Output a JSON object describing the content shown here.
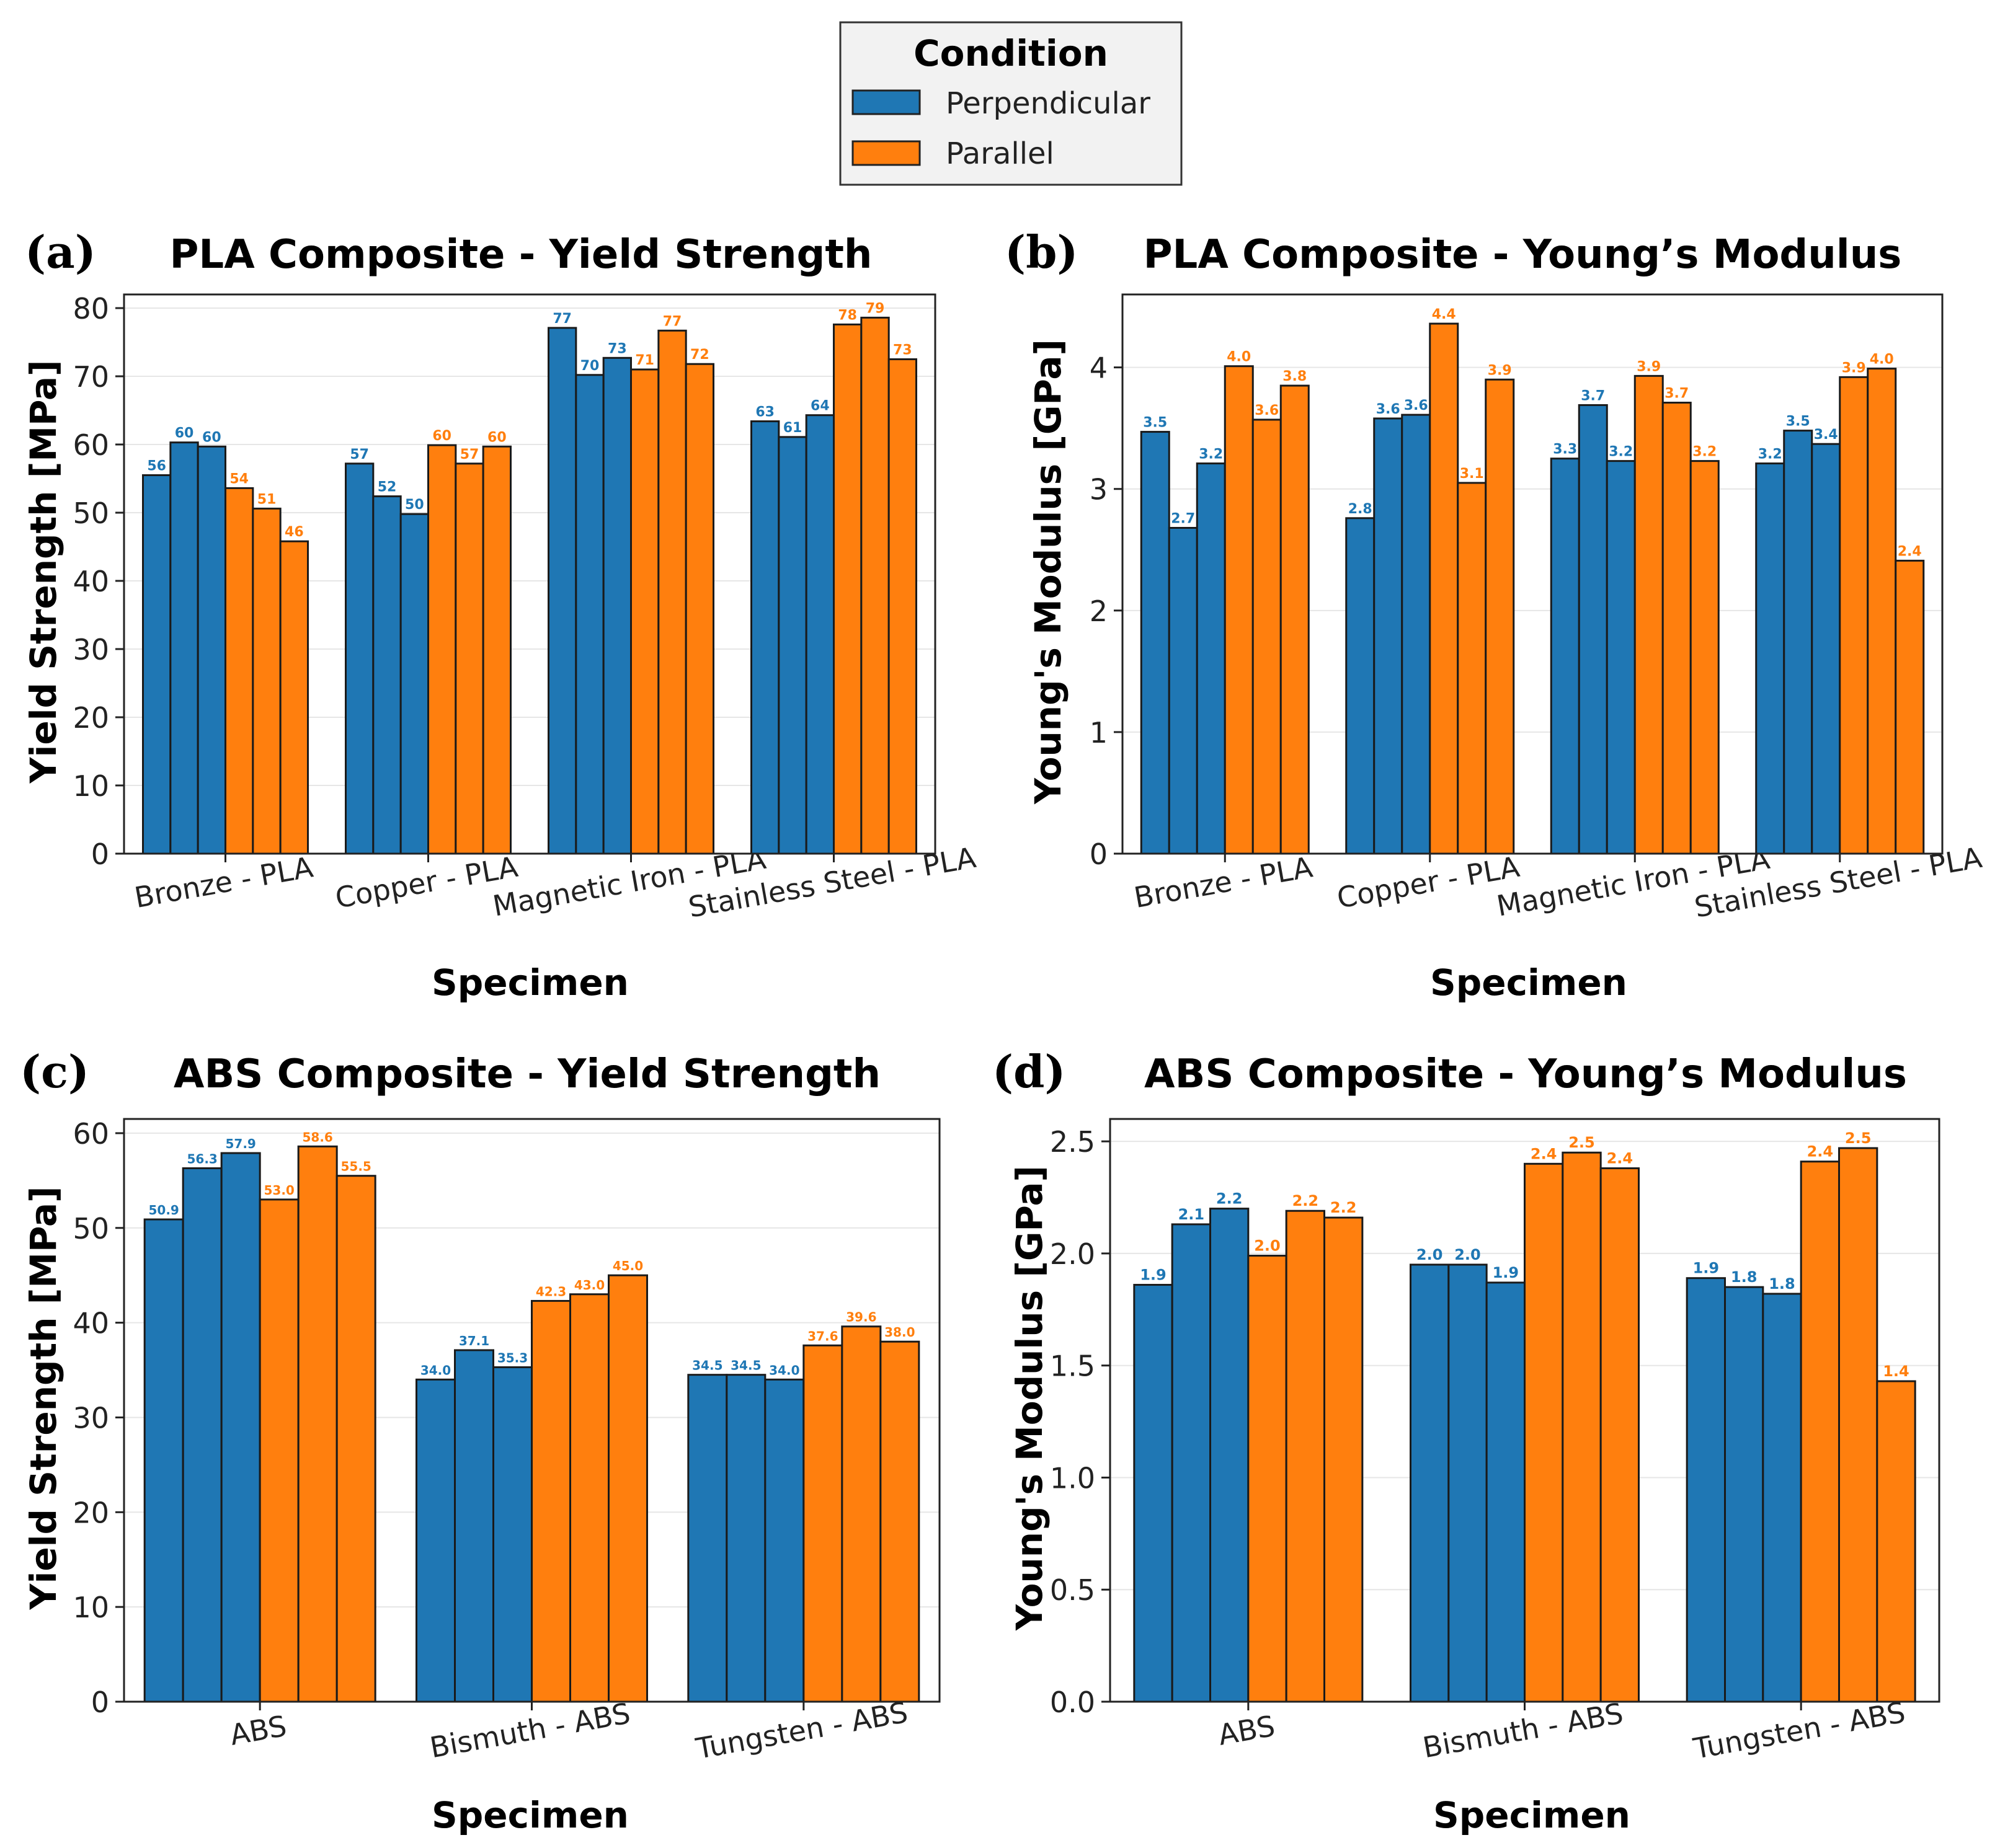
{
  "legend": {
    "title": "Condition",
    "entries": [
      {
        "label": "Perpendicular",
        "color": "#1f77b4"
      },
      {
        "label": "Parallel",
        "color": "#ff7f0e"
      }
    ]
  },
  "chart_data": [
    {
      "type": "bar",
      "panel_label": "(a)",
      "title": "PLA Composite - Yield Strength",
      "xlabel": "Specimen",
      "ylabel": "Yield Strength [MPa]",
      "ylim": [
        0,
        82
      ],
      "yticks": [
        0,
        10,
        20,
        30,
        40,
        50,
        60,
        70,
        80
      ],
      "grid": true,
      "categories": [
        "Bronze - PLA",
        "Copper - PLA",
        "Magnetic Iron - PLA",
        "Stainless Steel - PLA"
      ],
      "series": [
        {
          "name": "Perpendicular",
          "values": [
            [
              55.5,
              60.3,
              59.7
            ],
            [
              57.2,
              52.4,
              49.8
            ],
            [
              77.1,
              70.2,
              72.7
            ],
            [
              63.4,
              61.1,
              64.3
            ]
          ],
          "labels": [
            [
              "56",
              "60",
              "60"
            ],
            [
              "57",
              "52",
              "50"
            ],
            [
              "77",
              "70",
              "73"
            ],
            [
              "63",
              "61",
              "64"
            ]
          ]
        },
        {
          "name": "Parallel",
          "values": [
            [
              53.6,
              50.6,
              45.8
            ],
            [
              59.9,
              57.2,
              59.7
            ],
            [
              71.0,
              76.7,
              71.8
            ],
            [
              77.6,
              78.6,
              72.5
            ]
          ],
          "labels": [
            [
              "54",
              "51",
              "46"
            ],
            [
              "60",
              "57",
              "60"
            ],
            [
              "71",
              "77",
              "72"
            ],
            [
              "78",
              "79",
              "73"
            ]
          ]
        }
      ]
    },
    {
      "type": "bar",
      "panel_label": "(b)",
      "title": "PLA Composite - Young’s Modulus",
      "xlabel": "Specimen",
      "ylabel": "Young's Modulus [GPa]",
      "ylim": [
        0,
        4.6
      ],
      "yticks": [
        0,
        1,
        2,
        3,
        4
      ],
      "grid": true,
      "categories": [
        "Bronze - PLA",
        "Copper - PLA",
        "Magnetic Iron - PLA",
        "Stainless Steel - PLA"
      ],
      "series": [
        {
          "name": "Perpendicular",
          "values": [
            [
              3.47,
              2.68,
              3.21
            ],
            [
              2.76,
              3.58,
              3.61
            ],
            [
              3.25,
              3.69,
              3.23
            ],
            [
              3.21,
              3.48,
              3.37
            ]
          ],
          "labels": [
            [
              "3.5",
              "2.7",
              "3.2"
            ],
            [
              "2.8",
              "3.6",
              "3.6"
            ],
            [
              "3.3",
              "3.7",
              "3.2"
            ],
            [
              "3.2",
              "3.5",
              "3.4"
            ]
          ]
        },
        {
          "name": "Parallel",
          "values": [
            [
              4.01,
              3.57,
              3.85
            ],
            [
              4.36,
              3.05,
              3.9
            ],
            [
              3.93,
              3.71,
              3.23
            ],
            [
              3.92,
              3.99,
              2.41
            ]
          ],
          "labels": [
            [
              "4.0",
              "3.6",
              "3.8"
            ],
            [
              "4.4",
              "3.1",
              "3.9"
            ],
            [
              "3.9",
              "3.7",
              "3.2"
            ],
            [
              "3.9",
              "4.0",
              "2.4"
            ]
          ]
        }
      ]
    },
    {
      "type": "bar",
      "panel_label": "(c)",
      "title": "ABS Composite - Yield Strength",
      "xlabel": "Specimen",
      "ylabel": "Yield Strength [MPa]",
      "ylim": [
        0,
        61.5
      ],
      "yticks": [
        0,
        10,
        20,
        30,
        40,
        50,
        60
      ],
      "grid": true,
      "categories": [
        "ABS",
        "Bismuth - ABS",
        "Tungsten - ABS"
      ],
      "series": [
        {
          "name": "Perpendicular",
          "values": [
            [
              50.9,
              56.3,
              57.9
            ],
            [
              34.0,
              37.1,
              35.3
            ],
            [
              34.5,
              34.5,
              34.0
            ]
          ],
          "labels": [
            [
              "50.9",
              "56.3",
              "57.9"
            ],
            [
              "34.0",
              "37.1",
              "35.3"
            ],
            [
              "34.5",
              "34.5",
              "34.0"
            ]
          ]
        },
        {
          "name": "Parallel",
          "values": [
            [
              53.0,
              58.6,
              55.5
            ],
            [
              42.3,
              43.0,
              45.0
            ],
            [
              37.6,
              39.6,
              38.0
            ]
          ],
          "labels": [
            [
              "53.0",
              "58.6",
              "55.5"
            ],
            [
              "42.3",
              "43.0",
              "45.0"
            ],
            [
              "37.6",
              "39.6",
              "38.0"
            ]
          ]
        }
      ]
    },
    {
      "type": "bar",
      "panel_label": "(d)",
      "title": "ABS Composite - Young’s Modulus",
      "xlabel": "Specimen",
      "ylabel": "Young's Modulus [GPa]",
      "ylim": [
        0,
        2.6
      ],
      "yticks": [
        0.0,
        0.5,
        1.0,
        1.5,
        2.0,
        2.5
      ],
      "grid": true,
      "categories": [
        "ABS",
        "Bismuth - ABS",
        "Tungsten - ABS"
      ],
      "series": [
        {
          "name": "Perpendicular",
          "values": [
            [
              1.86,
              2.13,
              2.2
            ],
            [
              1.95,
              1.95,
              1.87
            ],
            [
              1.89,
              1.85,
              1.82
            ]
          ],
          "labels": [
            [
              "1.9",
              "2.1",
              "2.2"
            ],
            [
              "2.0",
              "2.0",
              "1.9"
            ],
            [
              "1.9",
              "1.8",
              "1.8"
            ]
          ]
        },
        {
          "name": "Parallel",
          "values": [
            [
              1.99,
              2.19,
              2.16
            ],
            [
              2.4,
              2.45,
              2.38
            ],
            [
              2.41,
              2.47,
              1.43
            ]
          ],
          "labels": [
            [
              "2.0",
              "2.2",
              "2.2"
            ],
            [
              "2.4",
              "2.5",
              "2.4"
            ],
            [
              "2.4",
              "2.5",
              "1.4"
            ]
          ]
        }
      ]
    }
  ]
}
